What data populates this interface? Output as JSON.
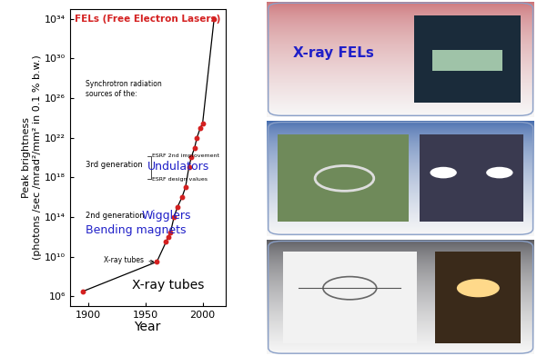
{
  "chart_data": {
    "type": "line",
    "xlabel": "Year",
    "ylabel": "Peak brightness\n(photons /sec /mrad²/mm² in 0.1 % b.w.)",
    "x": [
      1895,
      1960,
      1968,
      1970,
      1972,
      1975,
      1978,
      1982,
      1985,
      1988,
      1990,
      1993,
      1995,
      1998,
      2000,
      2010
    ],
    "values": [
      3000000.0,
      3000000000.0,
      300000000000.0,
      1000000000000.0,
      3000000000000.0,
      100000000000000.0,
      1000000000000000.0,
      1e+16,
      1e+17,
      1e+19,
      1e+20,
      1e+21,
      1e+22,
      1e+23,
      3e+23,
      1e+34
    ],
    "color": "#000000",
    "marker": "o",
    "log": "y",
    "xlim": [
      1884,
      2020
    ],
    "xticks": [
      1900,
      1950,
      2000
    ],
    "ylim": [
      100000,
      1e+35
    ],
    "yticks": [
      {
        "value": 1000000,
        "label": "10⁶"
      },
      {
        "value": 10000000000.0,
        "label": "10¹⁰"
      },
      {
        "value": 100000000000000.0,
        "label": "10¹⁴"
      },
      {
        "value": 1e+18,
        "label": "10¹⁸"
      },
      {
        "value": 1e+22,
        "label": "10²²"
      },
      {
        "value": 1e+26,
        "label": "10²⁶"
      },
      {
        "value": 1e+30,
        "label": "10³⁰"
      },
      {
        "value": 1e+34,
        "label": "10³⁴"
      }
    ],
    "annotations": [
      {
        "text": "FELs (Free Electron Lasers)",
        "color": "#d42020"
      },
      {
        "text": "Synchrotron radiation\nsources of the:",
        "color": "#000000"
      },
      {
        "text": "3rd generation",
        "color": "#000000"
      },
      {
        "text": "ESRF 2nd improvement",
        "color": "#000000"
      },
      {
        "text": "Undulators",
        "color": "#2020c8"
      },
      {
        "text": "ESRF design values",
        "color": "#000000"
      },
      {
        "text": "2nd generation",
        "color": "#000000"
      },
      {
        "text": "Wigglers",
        "color": "#2020c8"
      },
      {
        "text": "Bending magnets",
        "color": "#2020c8"
      },
      {
        "text": "X-ray tubes",
        "color": "#000000"
      },
      {
        "text": "X-ray tubes",
        "color": "#000000"
      }
    ]
  },
  "panels": [
    {
      "title": "X-ray FELs"
    }
  ]
}
